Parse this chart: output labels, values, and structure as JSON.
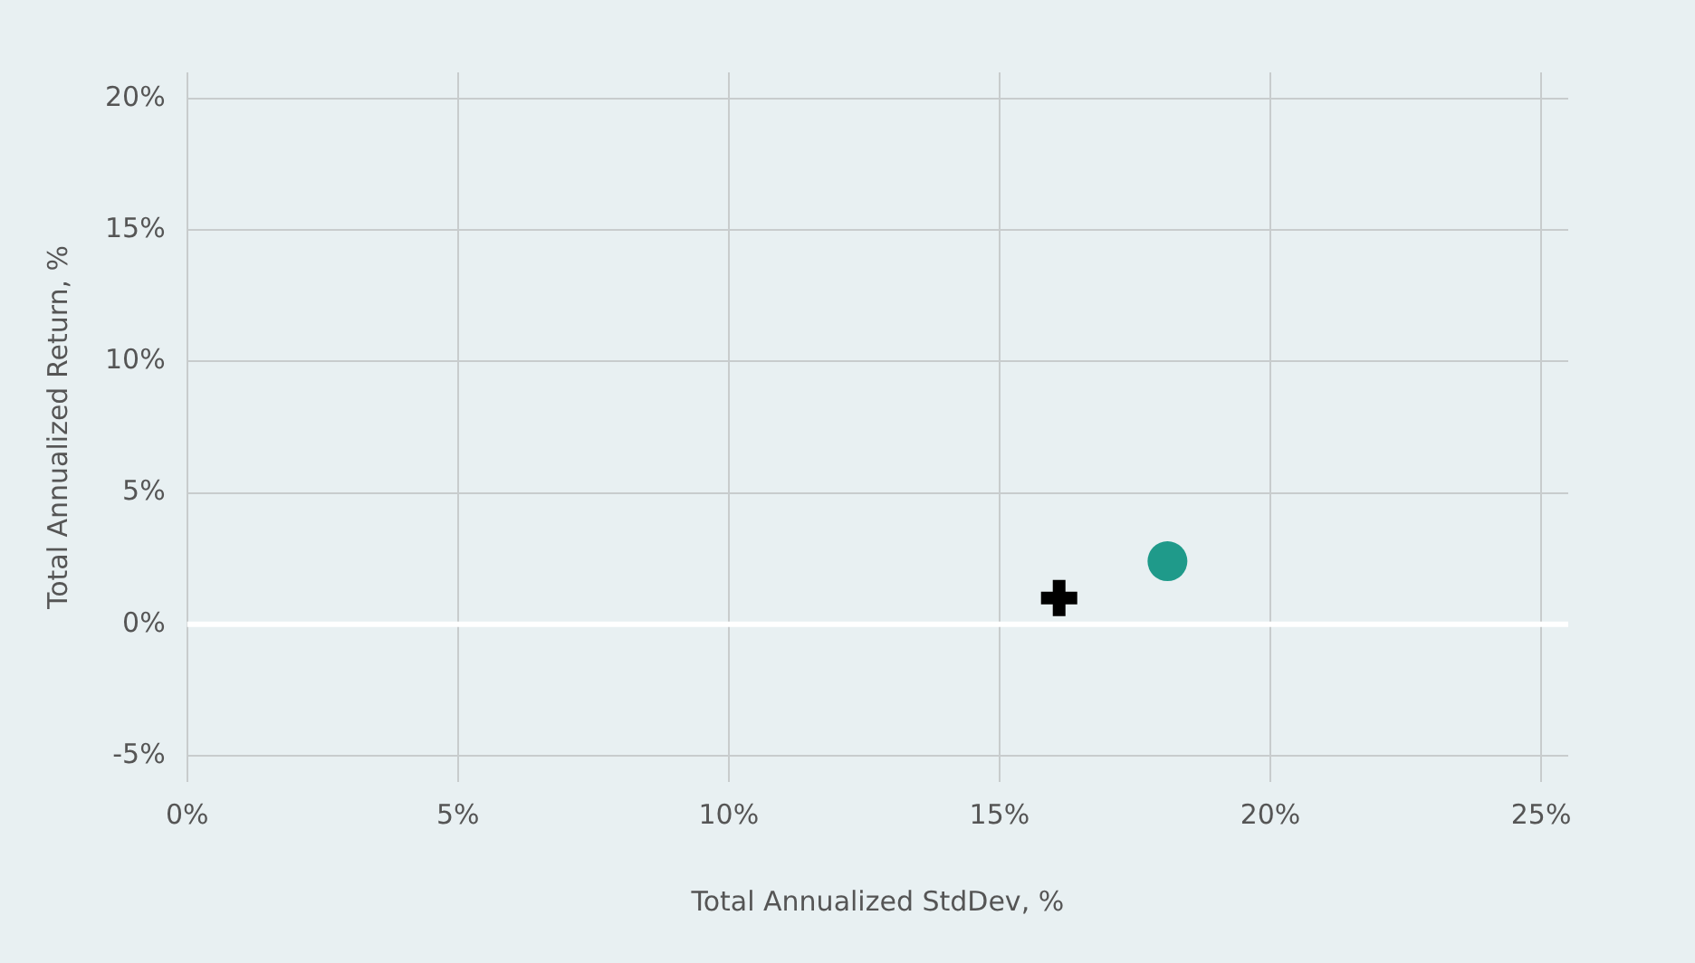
{
  "chart_data": {
    "type": "scatter",
    "xlabel": "Total Annualized StdDev, %",
    "ylabel": "Total Annualized Return, %",
    "xlim": [
      0,
      25.5
    ],
    "ylim": [
      -6,
      21
    ],
    "xticks": [
      {
        "value": 0,
        "label": "0%"
      },
      {
        "value": 5,
        "label": "5%"
      },
      {
        "value": 10,
        "label": "10%"
      },
      {
        "value": 15,
        "label": "15%"
      },
      {
        "value": 20,
        "label": "20%"
      },
      {
        "value": 25,
        "label": "25%"
      }
    ],
    "yticks": [
      {
        "value": -5,
        "label": "-5%"
      },
      {
        "value": 0,
        "label": "0%"
      },
      {
        "value": 5,
        "label": "5%"
      },
      {
        "value": 10,
        "label": "10%"
      },
      {
        "value": 15,
        "label": "15%"
      },
      {
        "value": 20,
        "label": "20%"
      }
    ],
    "series": [
      {
        "color": "#000000",
        "marker": "cross",
        "x": [
          16.1
        ],
        "values": [
          1.0
        ]
      },
      {
        "color": "#1f9a8a",
        "marker": "circle",
        "x": [
          18.1
        ],
        "values": [
          2.4
        ]
      }
    ],
    "ref_lines": [
      {
        "axis": "y",
        "value": 0,
        "color": "#ffffff"
      }
    ],
    "grid": true,
    "legend": false
  }
}
